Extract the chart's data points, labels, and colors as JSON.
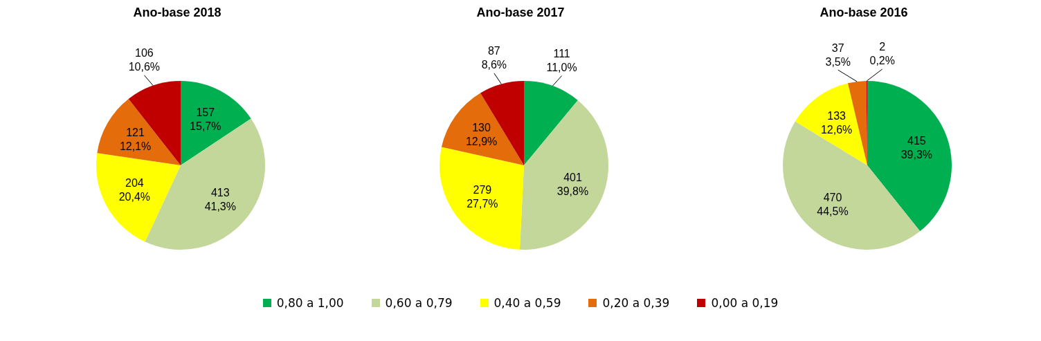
{
  "chart_data": [
    {
      "type": "pie",
      "title": "Ano-base 2018",
      "categories": [
        "0,80 a 1,00",
        "0,60 a 0,79",
        "0,40 a 0,59",
        "0,20 a 0,39",
        "0,00 a 0,19"
      ],
      "values": [
        157,
        413,
        204,
        121,
        106
      ],
      "colors": [
        "#00b050",
        "#c4d79b",
        "#ffff00",
        "#e46c0a",
        "#c00000"
      ],
      "value_labels": [
        "157\n15,7%",
        "413\n41,3%",
        "204\n20,4%",
        "121\n12,1%",
        "106\n10,6%"
      ],
      "legend": "bottom"
    },
    {
      "type": "pie",
      "title": "Ano-base 2017",
      "values": [
        111,
        401,
        279,
        130,
        87
      ],
      "colors": [
        "#00b050",
        "#c4d79b",
        "#ffff00",
        "#e46c0a",
        "#c00000"
      ],
      "value_labels": [
        "111\n11,0%",
        "401\n39,8%",
        "279\n27,7%",
        "130\n12,9%",
        "87\n8,6%"
      ]
    },
    {
      "type": "pie",
      "title": "Ano-base 2016",
      "values": [
        415,
        470,
        133,
        37,
        2
      ],
      "colors": [
        "#00b050",
        "#c4d79b",
        "#ffff00",
        "#e46c0a",
        "#c00000"
      ],
      "value_labels": [
        "415\n39,3%",
        "470\n44,5%",
        "133\n12,6%",
        "37\n3,5%",
        "2\n0,2%"
      ]
    }
  ]
}
